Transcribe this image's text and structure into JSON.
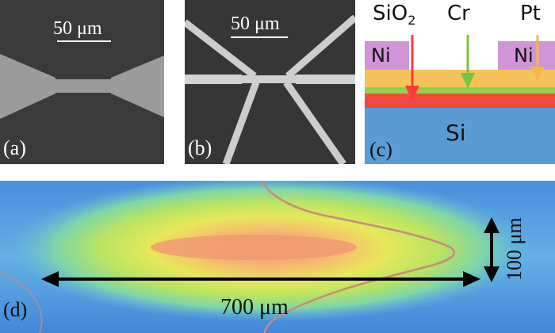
{
  "figure": {
    "panel_a": {
      "label": "(a)",
      "scale": "50 μm"
    },
    "panel_b": {
      "label": "(b)",
      "scale": "50 μm"
    },
    "panel_c": {
      "label": "(c)",
      "layers": {
        "ni_left": "Ni",
        "ni_right": "Ni",
        "si": "Si"
      },
      "callouts": {
        "sio2": {
          "base": "SiO",
          "sub": "2"
        },
        "cr": "Cr",
        "pt": "Pt"
      },
      "colors": {
        "ni": "#cf95d6",
        "pt": "#f5c35a",
        "cr": "#8fd14f",
        "sio2": "#f04a3f",
        "si": "#5b9bd5",
        "arrow_sio2": "#ff3a3a",
        "arrow_cr": "#7cc243",
        "arrow_pt": "#f6b84a"
      }
    },
    "panel_d": {
      "label": "(d)",
      "width_label": "700 μm",
      "height_label": "100 μm"
    }
  }
}
